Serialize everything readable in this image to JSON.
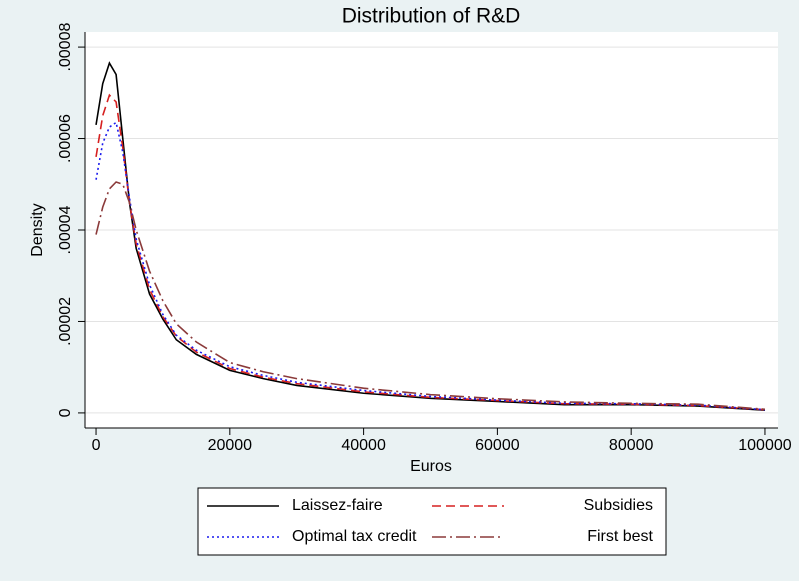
{
  "chart_data": {
    "type": "line",
    "title": "Distribution of R&D",
    "x_label": "Euros",
    "y_label": "Density",
    "x": [
      0,
      1000,
      2000,
      3000,
      4000,
      5000,
      6000,
      8000,
      10000,
      12000,
      15000,
      20000,
      25000,
      30000,
      40000,
      50000,
      60000,
      70000,
      80000,
      90000,
      100000
    ],
    "series": [
      {
        "name": "Laissez-faire",
        "color": "#000000",
        "style": "solid",
        "values": [
          6.3e-05,
          7.2e-05,
          7.65e-05,
          7.4e-05,
          6e-05,
          4.6e-05,
          3.6e-05,
          2.6e-05,
          2.05e-05,
          1.6e-05,
          1.28e-05,
          9.3e-06,
          7.5e-06,
          6e-06,
          4.3e-06,
          3.2e-06,
          2.5e-06,
          1.8e-06,
          1.8e-06,
          1.5e-06,
          6e-07
        ]
      },
      {
        "name": "Subsidies",
        "color": "#d62020",
        "style": "dash",
        "values": [
          5.6e-05,
          6.5e-05,
          6.95e-05,
          6.8e-05,
          5.8e-05,
          4.6e-05,
          3.7e-05,
          2.7e-05,
          2.1e-05,
          1.68e-05,
          1.33e-05,
          9.7e-06,
          7.8e-06,
          6.4e-06,
          4.6e-06,
          3.4e-06,
          2.7e-06,
          2e-06,
          1.9e-06,
          1.6e-06,
          7e-07
        ]
      },
      {
        "name": "Optimal tax credit",
        "color": "#1a1aee",
        "style": "dot",
        "values": [
          5.1e-05,
          5.9e-05,
          6.25e-05,
          6.35e-05,
          5.7e-05,
          4.7e-05,
          3.8e-05,
          2.8e-05,
          2.15e-05,
          1.7e-05,
          1.37e-05,
          1.01e-05,
          8.2e-06,
          6.7e-06,
          4.9e-06,
          3.6e-06,
          2.8e-06,
          2.1e-06,
          2e-06,
          1.7e-06,
          7e-07
        ]
      },
      {
        "name": "First best",
        "color": "#8b3a3a",
        "style": "dashdot",
        "values": [
          3.9e-05,
          4.5e-05,
          4.9e-05,
          5.05e-05,
          5e-05,
          4.6e-05,
          4e-05,
          3.1e-05,
          2.45e-05,
          1.95e-05,
          1.55e-05,
          1.1e-05,
          9e-06,
          7.5e-06,
          5.4e-06,
          4e-06,
          3.1e-06,
          2.4e-06,
          2.1e-06,
          1.9e-06,
          8e-07
        ]
      }
    ],
    "xlim": [
      -1650,
      101950
    ],
    "ylim": [
      -3.3e-06,
      8.33e-05
    ],
    "xticks": [
      0,
      20000,
      40000,
      60000,
      80000,
      100000
    ],
    "yticks": [
      0,
      {
        "value": 2e-05,
        "label": ".00002"
      },
      {
        "value": 4e-05,
        "label": ".00004"
      },
      {
        "value": 6e-05,
        "label": ".00006"
      },
      {
        "value": 8e-05,
        "label": ".00008"
      }
    ],
    "grid": true,
    "legend": "bottom"
  }
}
